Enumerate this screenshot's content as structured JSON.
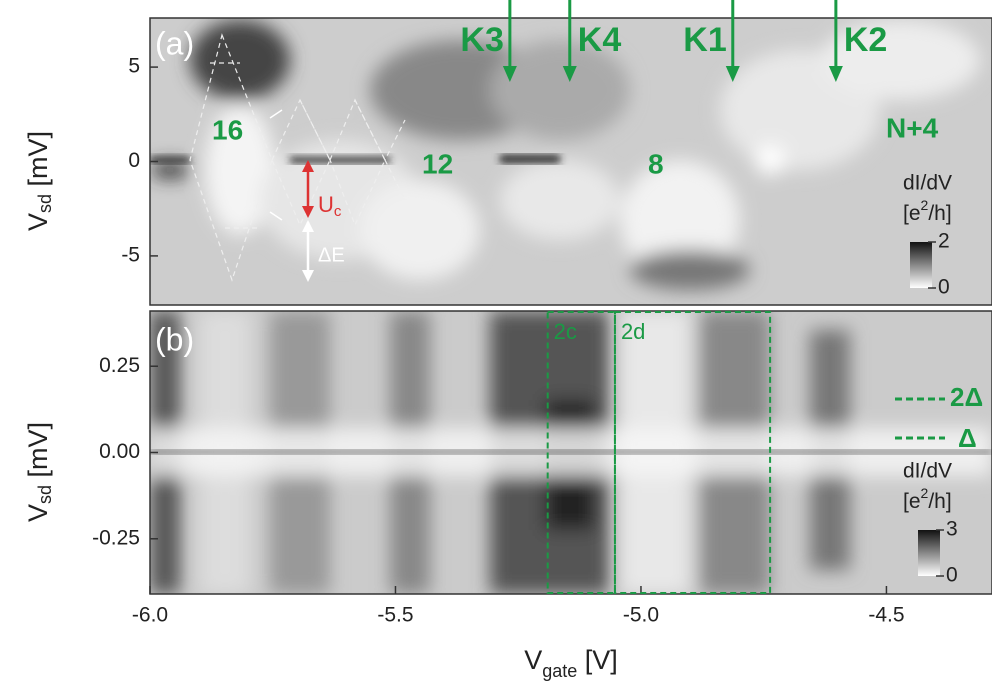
{
  "chart_data": [
    {
      "type": "heatmap",
      "panel_label": "(a)",
      "ylabel": {
        "main": "V",
        "sub": "sd",
        "unit": " [mV]"
      },
      "xlim": [
        -6.0,
        -4.285
      ],
      "ylim": [
        -7.6,
        7.6
      ],
      "yticks": [
        -5,
        0,
        5
      ],
      "colorbar": {
        "title": "dI/dV",
        "unit_main": "[e",
        "unit_sup": "2",
        "unit_end": "/h]",
        "clim": [
          0,
          2
        ],
        "ticks": [
          0,
          2
        ]
      },
      "annotations": [
        "16",
        "12",
        "8",
        "N+4",
        "U",
        "c",
        "ΔE"
      ],
      "markers": [
        {
          "label": "K3",
          "x": -5.267
        },
        {
          "label": "K4",
          "x": -5.145
        },
        {
          "label": "K1",
          "x": -4.813
        },
        {
          "label": "K2",
          "x": -4.603
        }
      ]
    },
    {
      "type": "heatmap",
      "panel_label": "(b)",
      "ylabel": {
        "main": "V",
        "sub": "sd",
        "unit": " [mV]"
      },
      "xlabel": {
        "main": "V",
        "sub": "gate",
        "unit": " [V]"
      },
      "xlim": [
        -6.0,
        -4.285
      ],
      "ylim": [
        -0.41,
        0.41
      ],
      "xticks": [
        {
          "value": -6.0,
          "label": "-6.0"
        },
        {
          "value": -5.5,
          "label": "-5.5"
        },
        {
          "value": -5.0,
          "label": "-5.0"
        },
        {
          "value": -4.5,
          "label": "-4.5"
        }
      ],
      "yticks": [
        {
          "value": 0.25,
          "label": "0.25"
        },
        {
          "value": 0.0,
          "label": "0.00"
        },
        {
          "value": -0.25,
          "label": "-0.25"
        }
      ],
      "colorbar": {
        "title": "dI/dV",
        "unit_main": "[e",
        "unit_sup": "2",
        "unit_end": "/h]",
        "clim": [
          0,
          3
        ],
        "ticks": [
          0,
          3
        ]
      },
      "regions": [
        {
          "label": "2c",
          "x": [
            -5.19,
            -5.053
          ]
        },
        {
          "label": "2d",
          "x": [
            -5.053,
            -4.737
          ]
        }
      ],
      "gap_labels": [
        "2Δ",
        "Δ"
      ]
    }
  ]
}
